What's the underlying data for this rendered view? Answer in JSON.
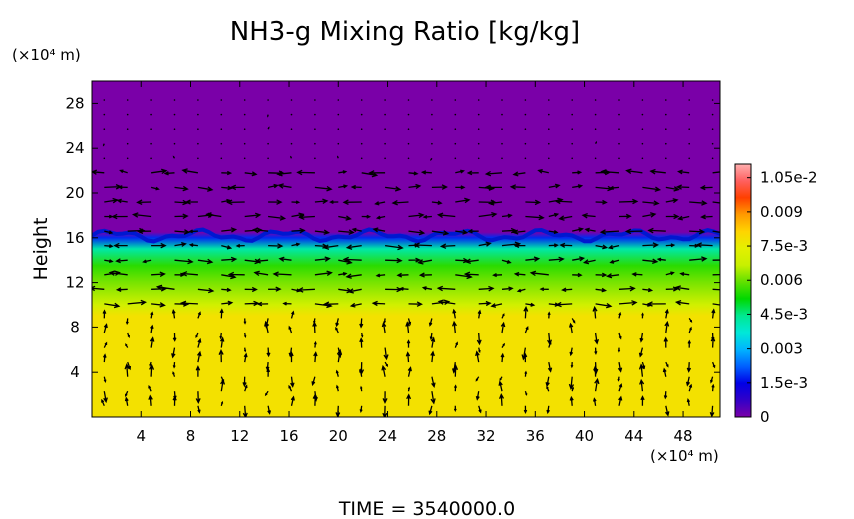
{
  "chart_data": {
    "type": "heatmap",
    "title": "NH3-g Mixing Ratio [kg/kg]",
    "ylabel": "Height",
    "x_unit_label": "(×10⁴ m)",
    "y_unit_label": "(×10⁴ m)",
    "footer": "TIME  =  3540000.0",
    "xlim": [
      0,
      51
    ],
    "ylim": [
      0,
      30
    ],
    "x_ticks": [
      4,
      8,
      12,
      16,
      20,
      24,
      28,
      32,
      36,
      40,
      44,
      48
    ],
    "y_ticks": [
      4,
      8,
      12,
      16,
      20,
      24,
      28
    ],
    "colorbar": {
      "min": 0,
      "max": 0.0111,
      "tick_values": [
        0,
        0.0015,
        0.003,
        0.0045,
        0.006,
        0.0075,
        0.009,
        0.0105
      ],
      "tick_labels": [
        "0",
        "1.5e-3",
        "0.003",
        "4.5e-3",
        "0.006",
        "7.5e-3",
        "0.009",
        "1.05e-2"
      ],
      "colors": [
        "#7a00a8",
        "#3200c8",
        "#0000e6",
        "#0060ff",
        "#00b4ff",
        "#00e8d8",
        "#00e890",
        "#00d800",
        "#60e000",
        "#c8f000",
        "#e4f000",
        "#ffd400",
        "#ff9a00",
        "#ff4000",
        "#ff6060",
        "#ffb0b0"
      ]
    },
    "profile": [
      {
        "height": 0,
        "value": 0.0078
      },
      {
        "height": 9,
        "value": 0.0078
      },
      {
        "height": 10,
        "value": 0.0069
      },
      {
        "height": 12,
        "value": 0.0061
      },
      {
        "height": 13.5,
        "value": 0.0055
      },
      {
        "height": 15,
        "value": 0.0042
      },
      {
        "height": 16,
        "value": 0.0018
      },
      {
        "height": 16.5,
        "value": 0.0
      },
      {
        "height": 30,
        "value": 0.0
      }
    ],
    "wind_vectors": "present"
  },
  "colors": {
    "background": "#ffffff",
    "axes": "#000000",
    "arrows": "#000000"
  }
}
